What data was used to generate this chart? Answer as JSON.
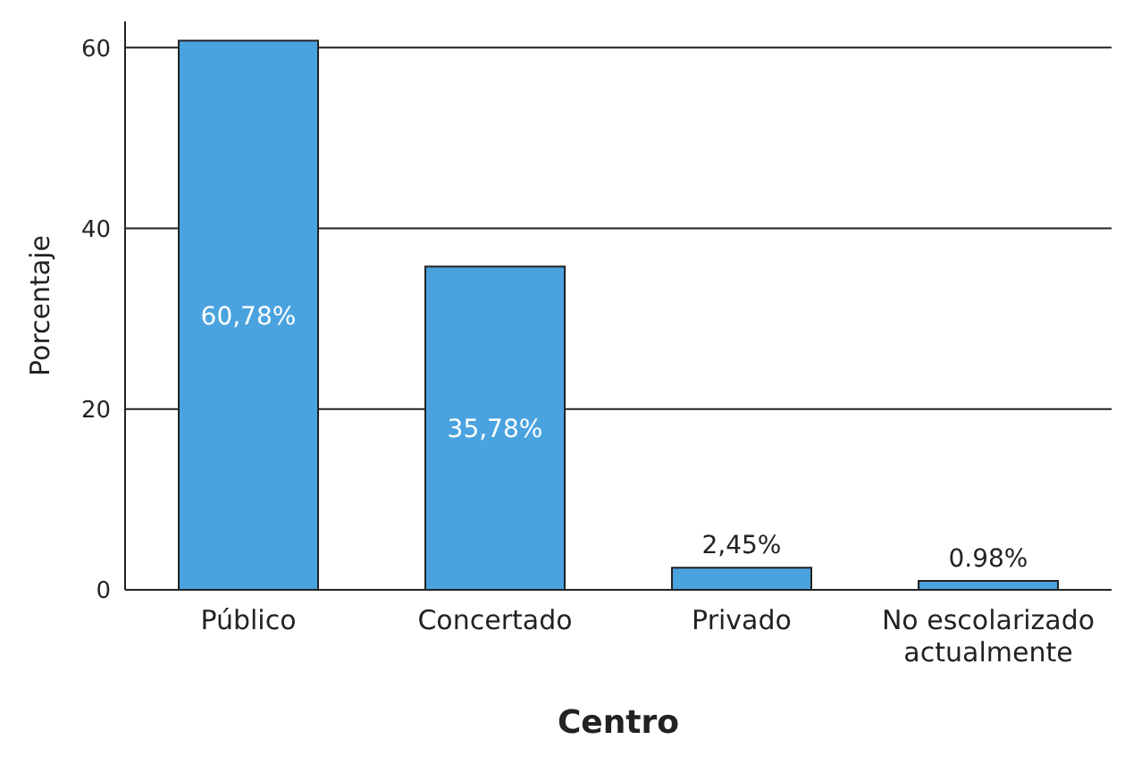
{
  "chart_data": {
    "type": "bar",
    "xlabel": "Centro",
    "ylabel": "Porcentaje",
    "categories": [
      "Público",
      "Concertado",
      "Privado",
      "No escolarizado actualmente"
    ],
    "values": [
      60.78,
      35.78,
      2.45,
      0.98
    ],
    "value_labels": [
      "60,78%",
      "35,78%",
      "2,45%",
      "0.98%"
    ],
    "color": "#4aa3df",
    "ylim": [
      0,
      62.9
    ],
    "yticks": [
      0,
      20,
      40,
      60
    ],
    "grid": "y"
  }
}
